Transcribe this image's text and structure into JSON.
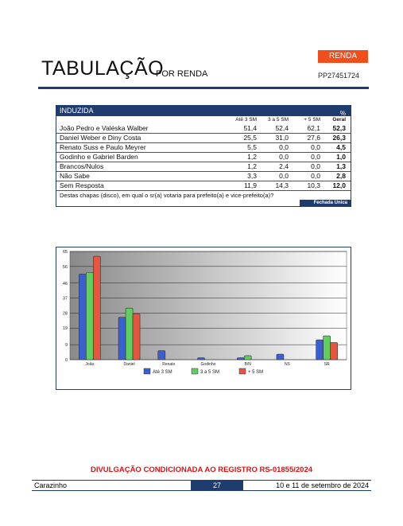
{
  "header": {
    "title": "TABULAÇÃO",
    "subtitle": "POR RENDA",
    "badge": "RENDA",
    "code": "PP27451724"
  },
  "table": {
    "title": "INDUZIDA",
    "unit": "%",
    "columns": [
      "Até 3 SM",
      "3 a 5 SM",
      "+ 5 SM",
      "Geral"
    ],
    "rows": [
      [
        "João Pedro e Valéska Walber",
        "51,4",
        "52,4",
        "62,1",
        "52,3"
      ],
      [
        "Daniel Weber e Diny Costa",
        "25,5",
        "31,0",
        "27,6",
        "26,3"
      ],
      [
        "Renato Suss e Paulo Meyrer",
        "5,5",
        "0,0",
        "0,0",
        "4,5"
      ],
      [
        "Godinho e Gabriel Barden",
        "1,2",
        "0,0",
        "0,0",
        "1,0"
      ],
      [
        "Brancos/Nulos",
        "1,2",
        "2,4",
        "0,0",
        "1,3"
      ],
      [
        "Não Sabe",
        "3,3",
        "0,0",
        "0,0",
        "2,8"
      ],
      [
        "Sem Resposta",
        "11,9",
        "14,3",
        "10,3",
        "12,0"
      ]
    ],
    "question": "Destas chapas (disco), em qual o sr(a) votaria para prefeito(a) e vice-prefeito(a)?",
    "note": "Fechada Única"
  },
  "chart_data": {
    "type": "bar",
    "categories": [
      "João",
      "Daniel",
      "Renato",
      "Godinho",
      "B/N",
      "NS",
      "SR"
    ],
    "series": [
      {
        "name": "Até 3 SM",
        "color": "#3a5fd0",
        "values": [
          51.4,
          25.5,
          5.5,
          1.2,
          1.2,
          3.3,
          11.9
        ]
      },
      {
        "name": "3 a 5 SM",
        "color": "#5fd05f",
        "values": [
          52.4,
          31.0,
          0.0,
          0.0,
          2.4,
          0.0,
          14.3
        ]
      },
      {
        "name": "+ 5 SM",
        "color": "#e8553f",
        "values": [
          62.1,
          27.6,
          0.0,
          0.0,
          0.0,
          0.0,
          10.3
        ]
      }
    ],
    "ylim": [
      0,
      65
    ],
    "yticks": [
      0,
      9,
      19,
      28,
      37,
      46,
      56,
      65
    ],
    "grid": true
  },
  "footer": {
    "disclaimer": "DIVULGAÇÃO CONDICIONADA AO REGISTRO RS-01855/2024",
    "city": "Carazinho",
    "page": "27",
    "date": "10 e 11 de setembro de 2024"
  }
}
